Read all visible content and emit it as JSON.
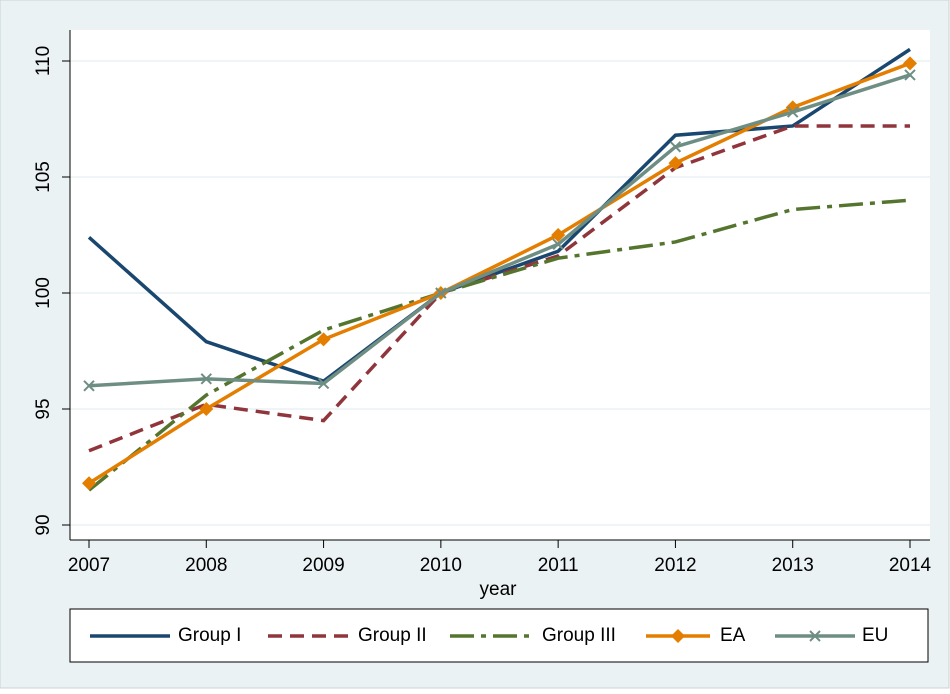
{
  "chart_data": {
    "type": "line",
    "x": [
      2007,
      2008,
      2009,
      2010,
      2011,
      2012,
      2013,
      2014
    ],
    "xlabel": "year",
    "xlim": [
      2007,
      2014
    ],
    "xticks": [
      2007,
      2008,
      2009,
      2010,
      2011,
      2012,
      2013,
      2014
    ],
    "ylim": [
      90,
      110
    ],
    "yticks": [
      90,
      95,
      100,
      105,
      110
    ],
    "grid": true,
    "legend": "bottom",
    "series": [
      {
        "name": "Group I",
        "color": "#1a476f",
        "dash": "solid",
        "marker": "none",
        "values": [
          102.4,
          97.9,
          96.2,
          100,
          101.8,
          106.8,
          107.2,
          110.5
        ]
      },
      {
        "name": "Group II",
        "color": "#90353b",
        "dash": "dash",
        "marker": "none",
        "values": [
          93.2,
          95.2,
          94.5,
          100,
          101.6,
          105.4,
          107.2,
          107.2
        ]
      },
      {
        "name": "Group III",
        "color": "#55752f",
        "dash": "longdash",
        "marker": "none",
        "values": [
          91.5,
          95.6,
          98.4,
          100,
          101.5,
          102.2,
          103.6,
          104.0
        ]
      },
      {
        "name": "EA",
        "color": "#e37e00",
        "dash": "solid",
        "marker": "diamond",
        "values": [
          91.8,
          95.0,
          98.0,
          100,
          102.5,
          105.6,
          108.0,
          109.9
        ]
      },
      {
        "name": "EU",
        "color": "#6e8e84",
        "dash": "solid",
        "marker": "x",
        "values": [
          96.0,
          96.3,
          96.1,
          100,
          102.1,
          106.3,
          107.8,
          109.4
        ]
      }
    ]
  }
}
